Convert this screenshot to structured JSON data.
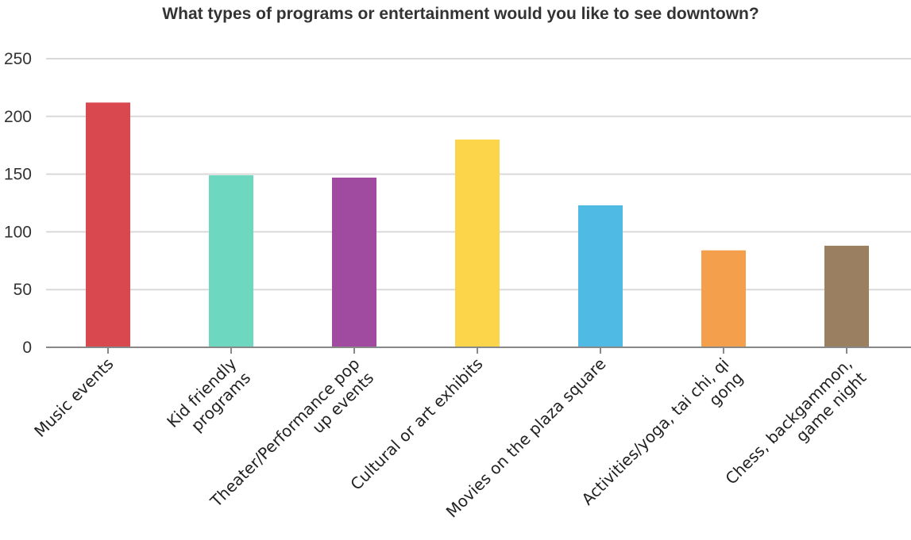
{
  "chart_data": {
    "type": "bar",
    "title": "What types of programs or entertainment would you like to see downtown?",
    "xlabel": "",
    "ylabel": "",
    "ylim": [
      0,
      250
    ],
    "yticks": [
      "0",
      "50",
      "100",
      "150",
      "200",
      "250"
    ],
    "grid": true,
    "categories": [
      "Music events",
      "Kid friendly programs",
      "Theater/Performance pop up events",
      "Cultural or art exhibits",
      "Movies on the plaza square",
      "Activities/yoga, tai chi, qi gong",
      "Chess, backgammon, game night"
    ],
    "category_lines": [
      [
        "Music events"
      ],
      [
        "Kid friendly",
        "programs"
      ],
      [
        "Theater/Performance pop",
        "up events"
      ],
      [
        "Cultural or art exhibits"
      ],
      [
        "Movies on the plaza square"
      ],
      [
        "Activities/yoga, tai chi, qi",
        "gong"
      ],
      [
        "Chess, backgammon,",
        "game night"
      ]
    ],
    "values": [
      212,
      149,
      147,
      180,
      123,
      84,
      88
    ],
    "colors": [
      "#d9484e",
      "#6dd8bf",
      "#a04ba0",
      "#fdd54b",
      "#4fbae3",
      "#f39f4c",
      "#9a7f60"
    ]
  }
}
